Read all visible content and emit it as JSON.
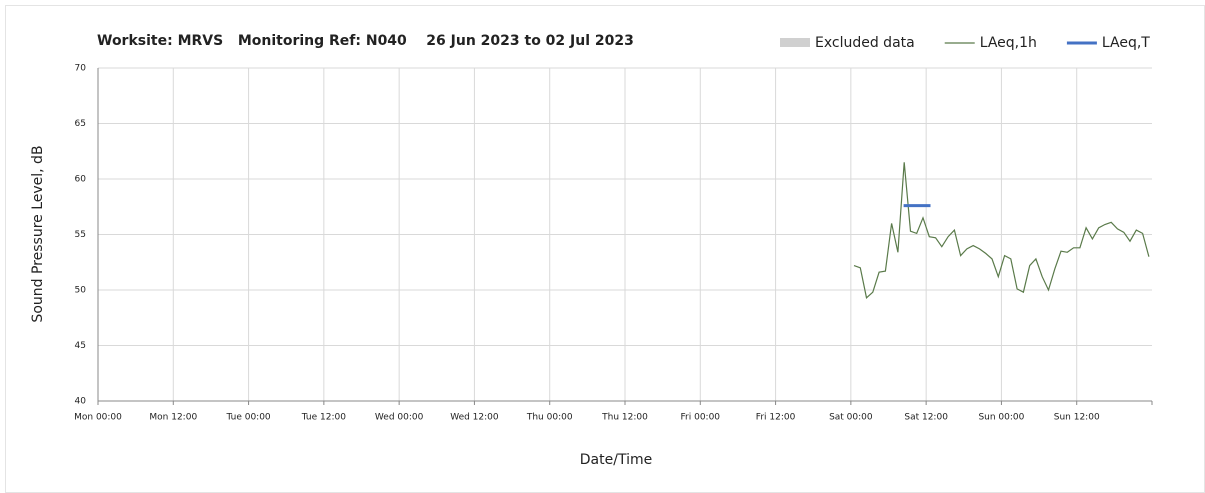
{
  "chart_data": {
    "type": "line",
    "title": "Worksite: MRVS   Monitoring Ref: N040    26 Jun 2023 to 02 Jul 2023",
    "y_label": "Sound Pressure Level, dB",
    "x_label": "Date/Time",
    "xlim": [
      0,
      168
    ],
    "xticks": [
      {
        "value": 0,
        "label": "Mon 00:00"
      },
      {
        "value": 12,
        "label": "Mon 12:00"
      },
      {
        "value": 24,
        "label": "Tue 00:00"
      },
      {
        "value": 36,
        "label": "Tue 12:00"
      },
      {
        "value": 48,
        "label": "Wed 00:00"
      },
      {
        "value": 60,
        "label": "Wed 12:00"
      },
      {
        "value": 72,
        "label": "Thu 00:00"
      },
      {
        "value": 84,
        "label": "Thu 12:00"
      },
      {
        "value": 96,
        "label": "Fri 00:00"
      },
      {
        "value": 108,
        "label": "Fri 12:00"
      },
      {
        "value": 120,
        "label": "Sat 00:00"
      },
      {
        "value": 132,
        "label": "Sat 12:00"
      },
      {
        "value": 144,
        "label": "Sun 00:00"
      },
      {
        "value": 156,
        "label": "Sun 12:00"
      }
    ],
    "ylim": [
      40,
      70
    ],
    "yticks": [
      40,
      45,
      50,
      55,
      60,
      65,
      70
    ],
    "grid": true,
    "legend": "top-right",
    "series": [
      {
        "name": "Excluded data",
        "color": "#d0d0d0",
        "style": "area",
        "x": [],
        "values": []
      },
      {
        "name": "LAeq,1h",
        "color": "#5a7a4a",
        "style": "line",
        "x": [
          120.5,
          121.5,
          122.5,
          123.5,
          124.5,
          125.5,
          126.5,
          127.5,
          128.5,
          129.5,
          130.5,
          131.5,
          132.5,
          133.5,
          134.5,
          135.5,
          136.5,
          137.5,
          138.5,
          139.5,
          140.5,
          141.5,
          142.5,
          143.5,
          144.5,
          145.5,
          146.5,
          147.5,
          148.5,
          149.5,
          150.5,
          151.5,
          152.5,
          153.5,
          154.5,
          155.5,
          156.5,
          157.5,
          158.5,
          159.5,
          160.5,
          161.5,
          162.5,
          163.5,
          164.5,
          165.5,
          166.5,
          167.5
        ],
        "values": [
          52.2,
          52.0,
          49.3,
          49.8,
          51.6,
          51.7,
          56.0,
          53.4,
          61.5,
          55.3,
          55.1,
          56.5,
          54.8,
          54.7,
          53.9,
          54.8,
          55.4,
          53.1,
          53.7,
          54.0,
          53.7,
          53.3,
          52.8,
          51.2,
          53.1,
          52.8,
          50.1,
          49.8,
          52.2,
          52.8,
          51.2,
          50.0,
          51.9,
          53.5,
          53.4,
          53.8,
          53.8,
          55.6,
          54.6,
          55.6,
          55.9,
          56.1,
          55.5,
          55.2,
          54.4,
          55.4,
          55.1,
          53.0
        ]
      },
      {
        "name": "LAeq,T",
        "color": "#4472c4",
        "style": "thick",
        "x": [
          128.4,
          132.7
        ],
        "values": [
          57.6,
          57.6
        ]
      }
    ]
  }
}
